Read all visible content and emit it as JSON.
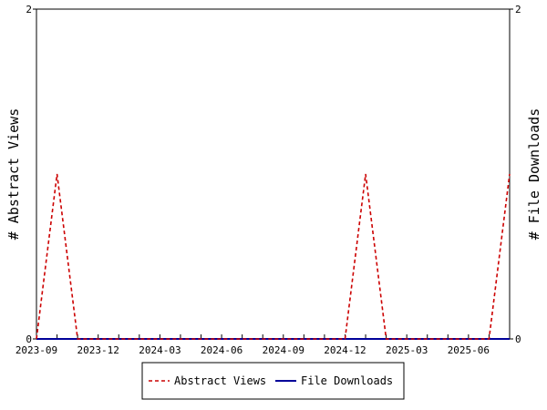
{
  "chart_data": {
    "type": "line",
    "x": [
      "2023-09",
      "2023-10",
      "2023-11",
      "2023-12",
      "2024-01",
      "2024-02",
      "2024-03",
      "2024-04",
      "2024-05",
      "2024-06",
      "2024-07",
      "2024-08",
      "2024-09",
      "2024-10",
      "2024-11",
      "2024-12",
      "2025-01",
      "2025-02",
      "2025-03",
      "2025-04",
      "2025-05",
      "2025-06",
      "2025-07",
      "2025-08"
    ],
    "x_tick_labels": [
      "2023-09",
      "2023-12",
      "2024-03",
      "2024-06",
      "2024-09",
      "2024-12",
      "2025-03",
      "2025-06"
    ],
    "series": [
      {
        "name": "Abstract Views",
        "axis": "left",
        "color": "#cc0000",
        "dash": "dashed",
        "values": [
          0,
          1,
          0,
          0,
          0,
          0,
          0,
          0,
          0,
          0,
          0,
          0,
          0,
          0,
          0,
          0,
          1,
          0,
          0,
          0,
          0,
          0,
          0,
          1
        ]
      },
      {
        "name": "File Downloads",
        "axis": "right",
        "color": "#000099",
        "dash": "solid",
        "values": [
          0,
          0,
          0,
          0,
          0,
          0,
          0,
          0,
          0,
          0,
          0,
          0,
          0,
          0,
          0,
          0,
          0,
          0,
          0,
          0,
          0,
          0,
          0,
          0
        ]
      }
    ],
    "ylabel_left": "# Abstract Views",
    "ylabel_right": "# File Downloads",
    "ylim_left": [
      0,
      2
    ],
    "ylim_right": [
      0,
      2
    ],
    "y_ticks_left": [
      "0",
      "2"
    ],
    "y_ticks_right": [
      "0",
      "2"
    ],
    "grid": false,
    "legend_position": "bottom-center"
  }
}
